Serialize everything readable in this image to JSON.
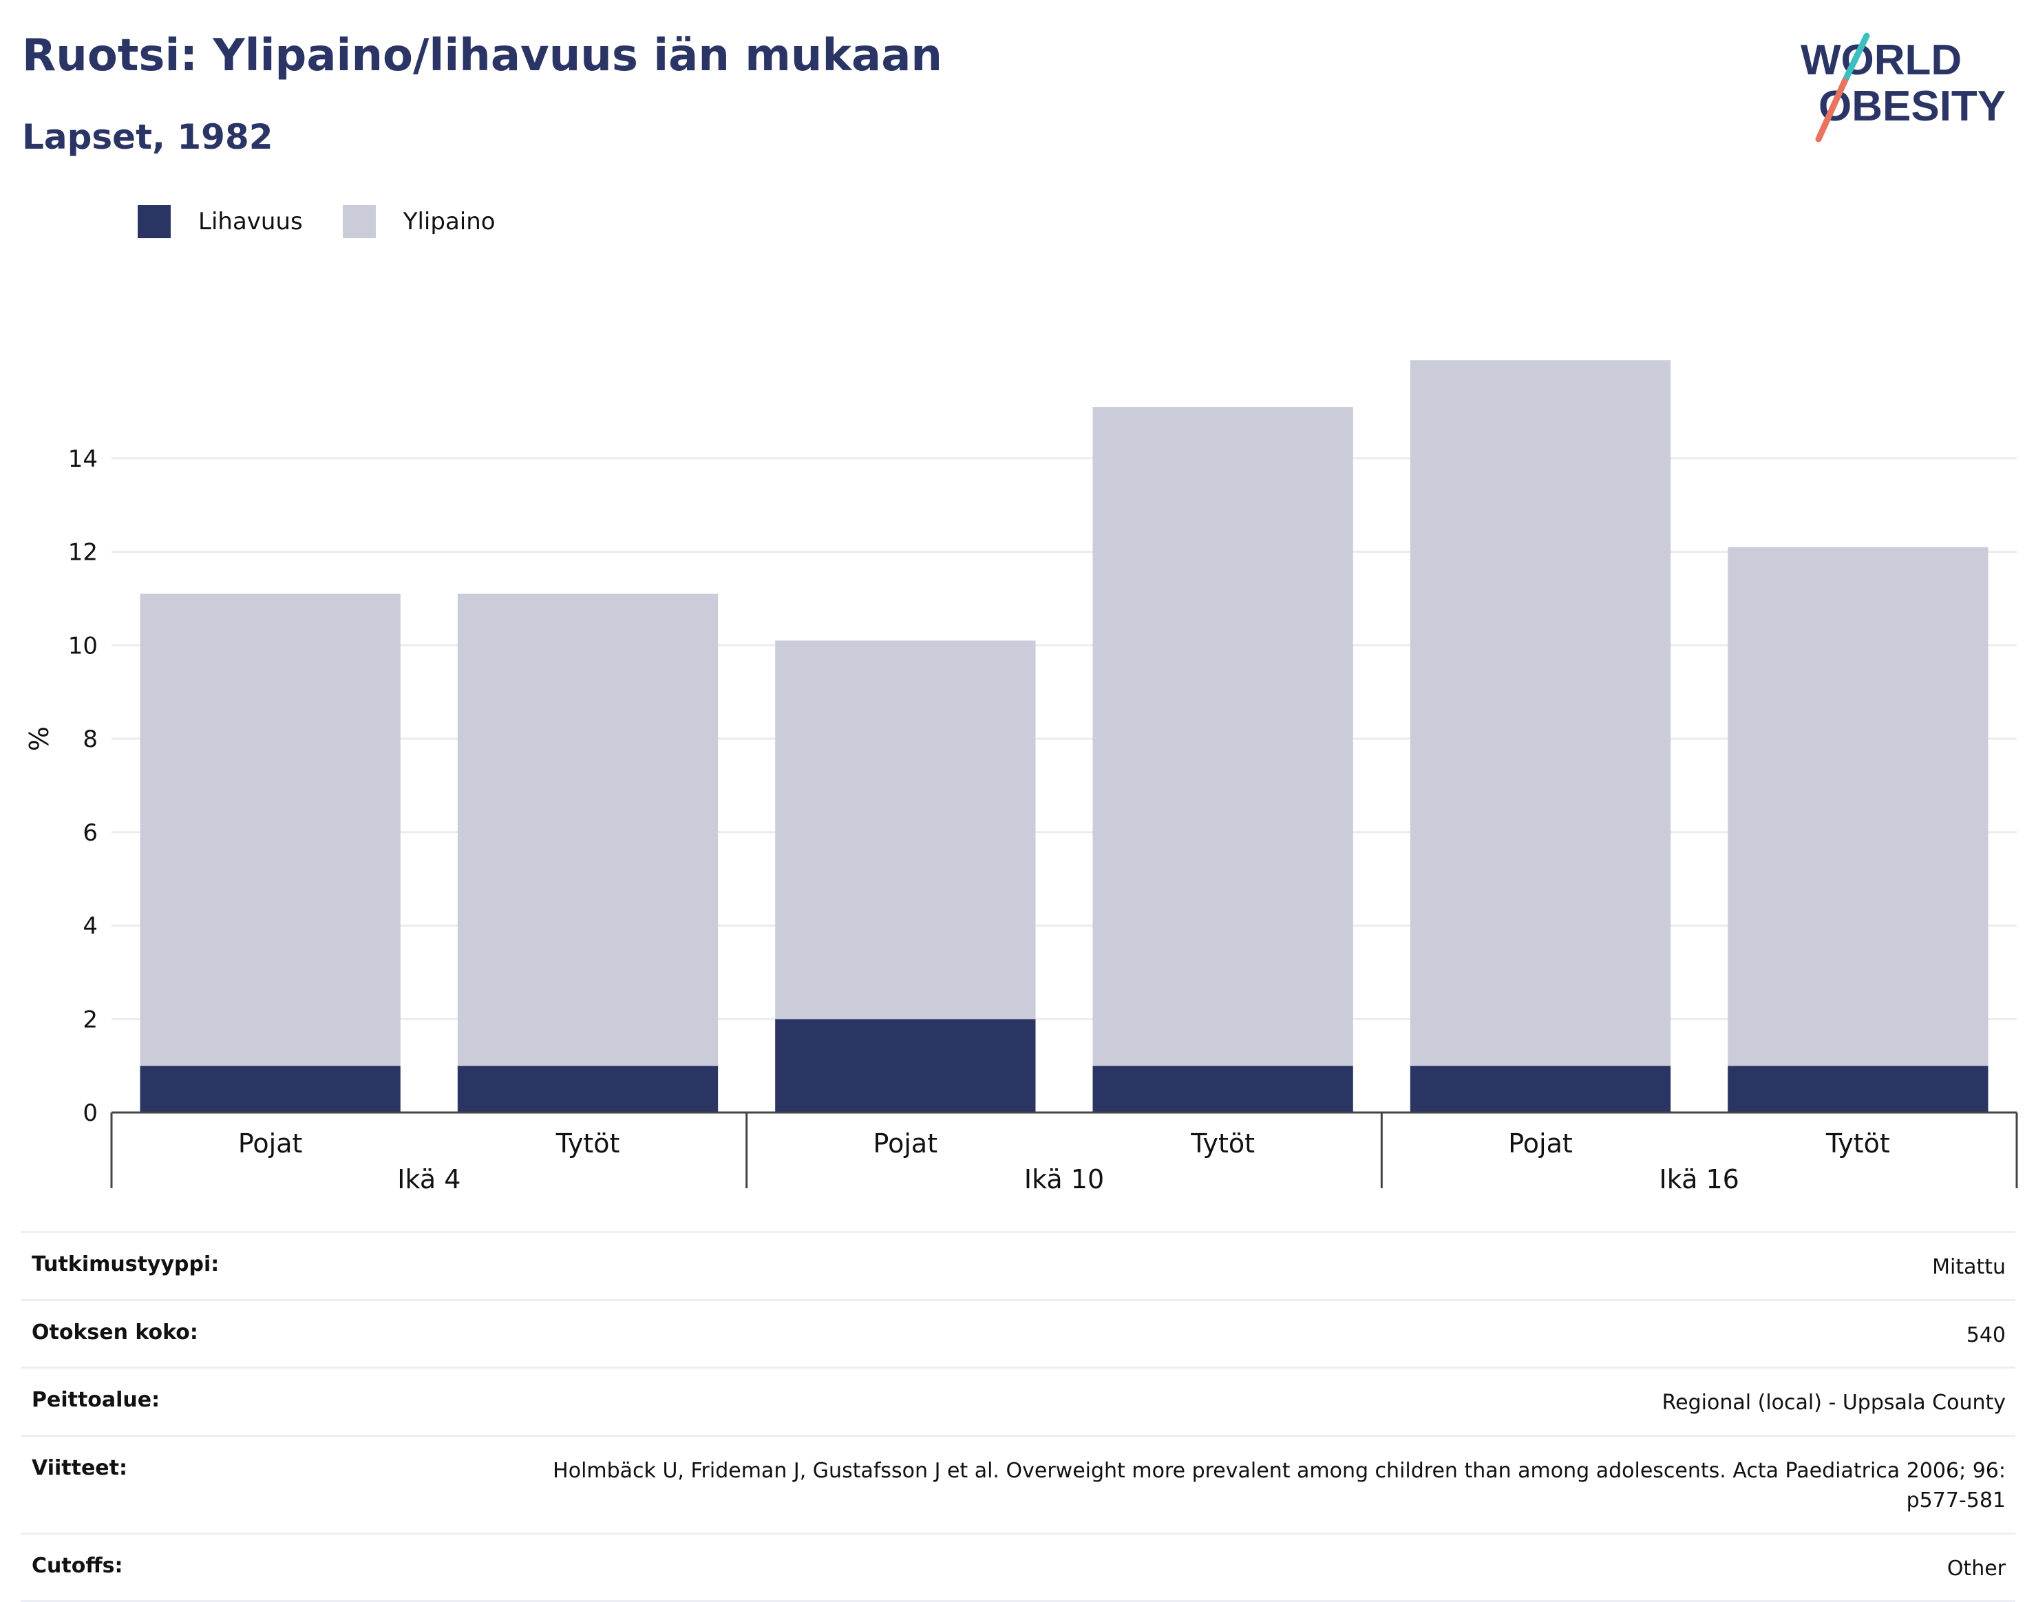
{
  "header": {
    "title": "Ruotsi: Ylipaino/lihavuus iän mukaan",
    "subtitle": "Lapset, 1982"
  },
  "logo": {
    "line1": "WORLD",
    "line2": "OBESITY"
  },
  "legend": [
    {
      "label": "Lihavuus",
      "color": "#2a3564"
    },
    {
      "label": "Ylipaino",
      "color": "#cacdd9"
    }
  ],
  "chart_data": {
    "type": "bar",
    "stacked": true,
    "ylabel": "%",
    "ylim": [
      0,
      16
    ],
    "yticks": [
      0,
      2,
      4,
      6,
      8,
      10,
      12,
      14
    ],
    "grid": true,
    "legend_position": "top-left",
    "groups": [
      {
        "label": "Ikä 4",
        "categories": [
          "Pojat",
          "Tytöt"
        ]
      },
      {
        "label": "Ikä 10",
        "categories": [
          "Pojat",
          "Tytöt"
        ]
      },
      {
        "label": "Ikä 16",
        "categories": [
          "Pojat",
          "Tytöt"
        ]
      }
    ],
    "categories": [
      "Pojat",
      "Tytöt",
      "Pojat",
      "Tytöt",
      "Pojat",
      "Tytöt"
    ],
    "series": [
      {
        "name": "Lihavuus",
        "color": "#2a3564",
        "values": [
          1,
          1,
          2,
          1,
          1,
          1
        ]
      },
      {
        "name": "Ylipaino",
        "color": "#cacdd9",
        "values": [
          10.1,
          10.1,
          8.1,
          14.1,
          15.1,
          11.1
        ]
      }
    ]
  },
  "details": [
    {
      "key": "Tutkimustyyppi:",
      "value": "Mitattu"
    },
    {
      "key": "Otoksen koko:",
      "value": "540"
    },
    {
      "key": "Peittoalue:",
      "value": "Regional (local) - Uppsala County"
    },
    {
      "key": "Viitteet:",
      "value": "Holmbäck U, Frideman J, Gustafsson J et al. Overweight more prevalent among children than among adolescents. Acta Paediatrica 2006; 96: p577-581"
    },
    {
      "key": "Cutoffs:",
      "value": "Other"
    }
  ]
}
